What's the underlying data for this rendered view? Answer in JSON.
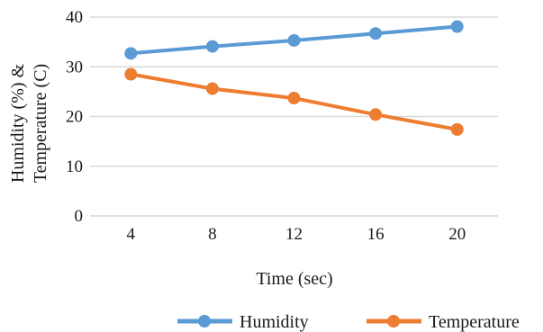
{
  "chart_data": {
    "type": "line",
    "x": [
      4,
      8,
      12,
      16,
      20
    ],
    "series": [
      {
        "name": "Humidity",
        "values": [
          32.7,
          34.1,
          35.3,
          36.7,
          38.1
        ],
        "color": "#5b9bd5"
      },
      {
        "name": "Temperature",
        "values": [
          28.5,
          25.6,
          23.7,
          20.4,
          17.4
        ],
        "color": "#ed7d31"
      }
    ],
    "xlabel": "Time (sec)",
    "ylabel": [
      "Humidity (%) &",
      "Temperature (C)"
    ],
    "ylim": [
      0,
      40
    ],
    "yticks": [
      0,
      10,
      20,
      30,
      40
    ],
    "grid": "horizontal",
    "legend_position": "bottom"
  }
}
